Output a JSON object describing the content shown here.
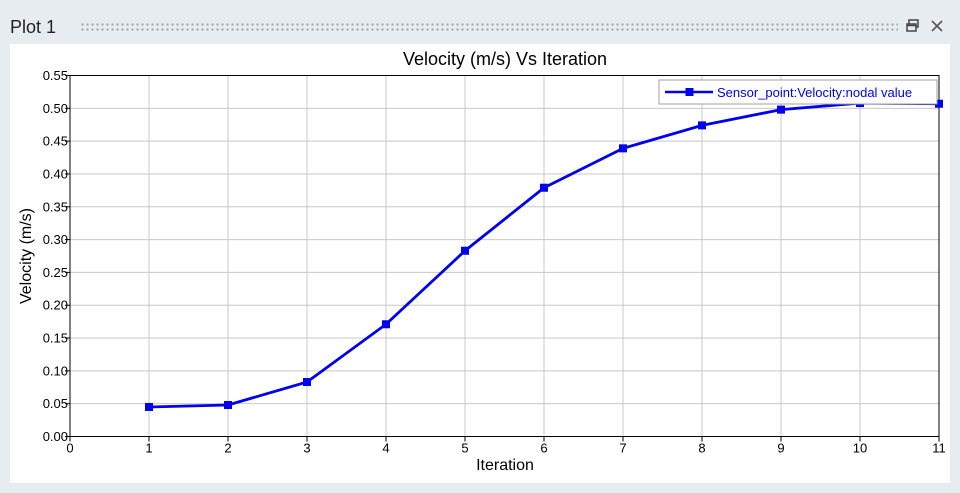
{
  "window": {
    "title": "Plot 1",
    "icons": [
      "restore-icon",
      "close-icon"
    ]
  },
  "chart_data": {
    "type": "line",
    "title": "Velocity (m/s) Vs Iteration",
    "xlabel": "Iteration",
    "ylabel": "Velocity (m/s)",
    "xlim": [
      0,
      11
    ],
    "ylim": [
      0,
      0.55
    ],
    "xticks": [
      "0",
      "1",
      "2",
      "3",
      "4",
      "5",
      "6",
      "7",
      "8",
      "9",
      "10",
      "11"
    ],
    "yticks": [
      "0.00",
      "0.05",
      "0.10",
      "0.15",
      "0.20",
      "0.25",
      "0.30",
      "0.35",
      "0.40",
      "0.45",
      "0.50",
      "0.55"
    ],
    "grid": true,
    "legend_position": "top-right",
    "series": [
      {
        "name": "Sensor_point:Velocity:nodal value",
        "color": "#0000ee",
        "marker": "square",
        "x": [
          1,
          2,
          3,
          4,
          5,
          6,
          7,
          8,
          9,
          10,
          11
        ],
        "y": [
          0.045,
          0.048,
          0.083,
          0.171,
          0.283,
          0.379,
          0.439,
          0.474,
          0.498,
          0.508,
          0.507
        ]
      }
    ]
  }
}
